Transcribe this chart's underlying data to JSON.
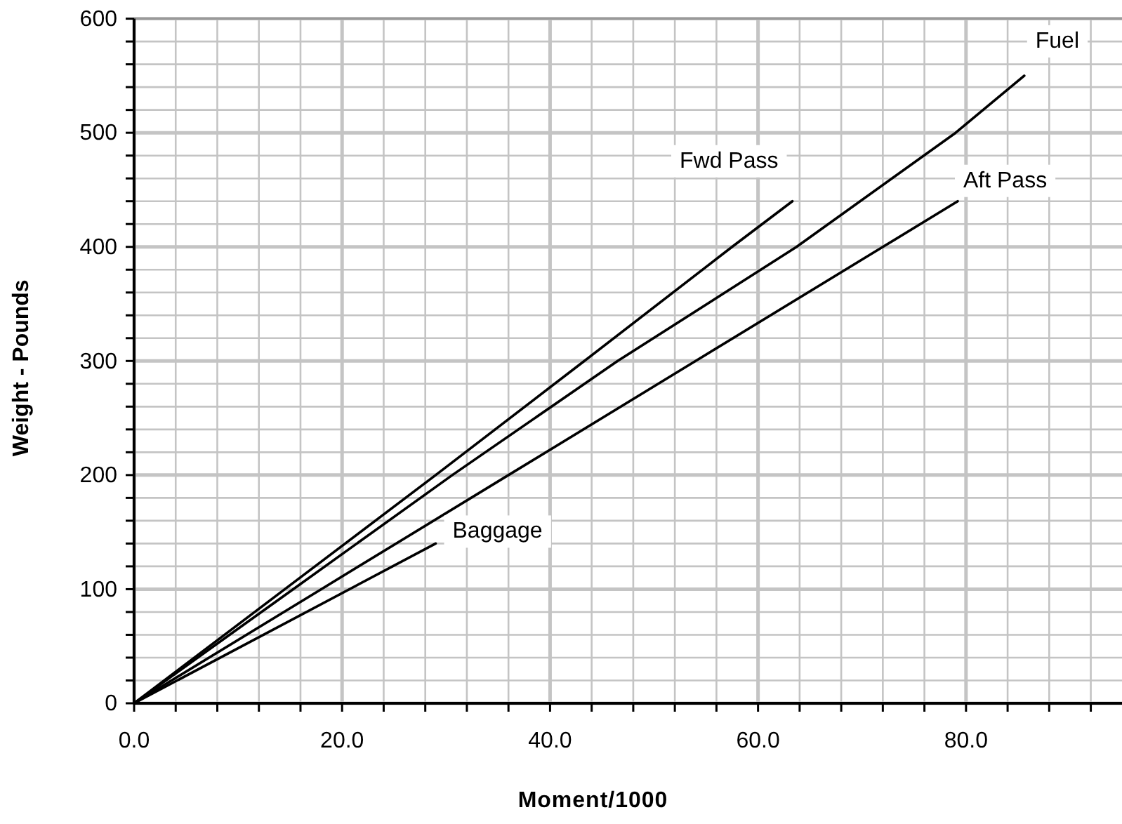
{
  "chart_data": {
    "type": "line",
    "xlabel": "Moment/1000",
    "ylabel": "Weight - Pounds",
    "xlim": [
      0,
      95
    ],
    "xticks": [
      {
        "value": 0,
        "label": "0.0"
      },
      {
        "value": 4,
        "label": null
      },
      {
        "value": 8,
        "label": null
      },
      {
        "value": 12,
        "label": null
      },
      {
        "value": 16,
        "label": null
      },
      {
        "value": 20,
        "label": "20.0"
      },
      {
        "value": 24,
        "label": null
      },
      {
        "value": 28,
        "label": null
      },
      {
        "value": 32,
        "label": null
      },
      {
        "value": 36,
        "label": null
      },
      {
        "value": 40,
        "label": "40.0"
      },
      {
        "value": 44,
        "label": null
      },
      {
        "value": 48,
        "label": null
      },
      {
        "value": 52,
        "label": null
      },
      {
        "value": 56,
        "label": null
      },
      {
        "value": 60,
        "label": "60.0"
      },
      {
        "value": 64,
        "label": null
      },
      {
        "value": 68,
        "label": null
      },
      {
        "value": 72,
        "label": null
      },
      {
        "value": 76,
        "label": null
      },
      {
        "value": 80,
        "label": "80.0"
      },
      {
        "value": 84,
        "label": null
      },
      {
        "value": 88,
        "label": null
      },
      {
        "value": 92,
        "label": null
      }
    ],
    "ylim": [
      0,
      600
    ],
    "yticks": [
      0,
      {
        "value": 20,
        "label": null
      },
      {
        "value": 40,
        "label": null
      },
      {
        "value": 60,
        "label": null
      },
      {
        "value": 80,
        "label": null
      },
      100,
      {
        "value": 120,
        "label": null
      },
      {
        "value": 140,
        "label": null
      },
      {
        "value": 160,
        "label": null
      },
      {
        "value": 180,
        "label": null
      },
      200,
      {
        "value": 220,
        "label": null
      },
      {
        "value": 240,
        "label": null
      },
      {
        "value": 260,
        "label": null
      },
      {
        "value": 280,
        "label": null
      },
      300,
      {
        "value": 320,
        "label": null
      },
      {
        "value": 340,
        "label": null
      },
      {
        "value": 360,
        "label": null
      },
      {
        "value": 380,
        "label": null
      },
      400,
      {
        "value": 420,
        "label": null
      },
      {
        "value": 440,
        "label": null
      },
      {
        "value": 460,
        "label": null
      },
      {
        "value": 480,
        "label": null
      },
      500,
      {
        "value": 520,
        "label": null
      },
      {
        "value": 540,
        "label": null
      },
      {
        "value": 560,
        "label": null
      },
      {
        "value": 580,
        "label": null
      },
      600
    ],
    "grid": true,
    "marker": "none",
    "line_style": "solid",
    "series": [
      {
        "name": "Fuel",
        "color": "#000000",
        "x": [
          0,
          15.3,
          30.6,
          46.5,
          63.7,
          79,
          85.6
        ],
        "values": [
          0,
          100,
          200,
          300,
          400,
          500,
          550
        ]
      },
      {
        "name": "Fwd Pass",
        "color": "#000000",
        "x": [
          0,
          14.5,
          29,
          43.3,
          57.5,
          63.3
        ],
        "values": [
          0,
          100,
          200,
          300,
          400,
          440
        ]
      },
      {
        "name": "Aft Pass",
        "color": "#000000",
        "x": [
          0,
          18,
          36,
          54,
          72,
          79.2
        ],
        "values": [
          0,
          100,
          200,
          300,
          400,
          440
        ]
      },
      {
        "name": "Baggage",
        "color": "#000000",
        "x": [
          0,
          29
        ],
        "values": [
          0,
          140
        ]
      }
    ]
  }
}
